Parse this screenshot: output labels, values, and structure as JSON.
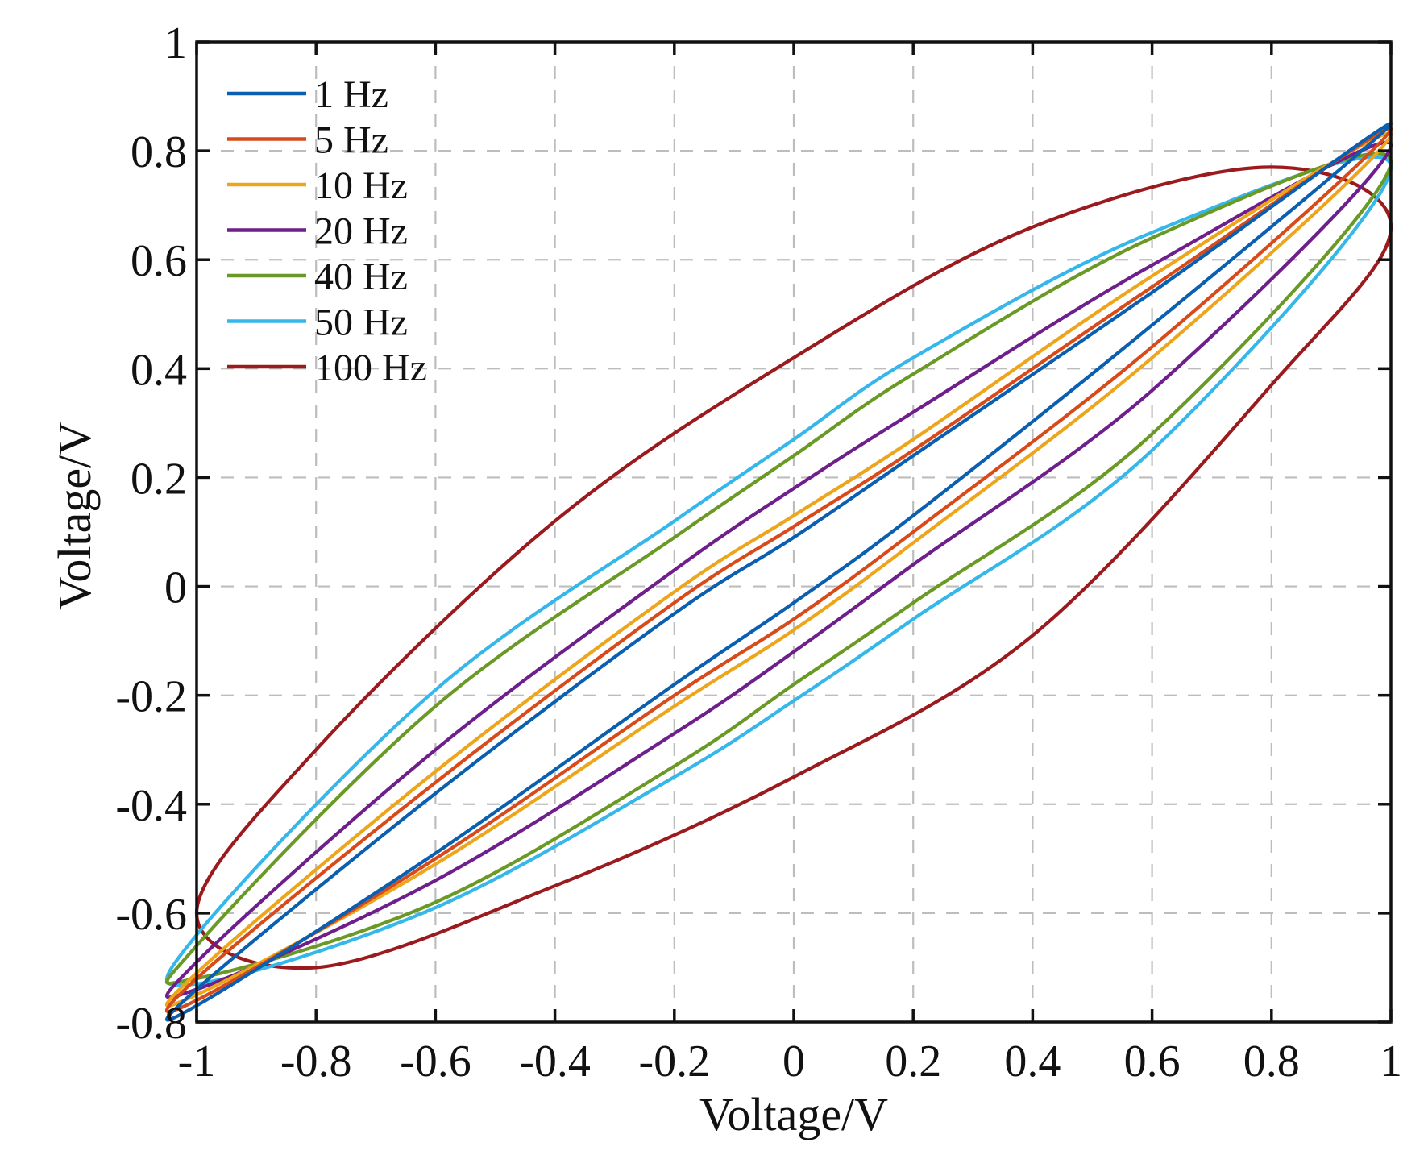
{
  "chart_data": {
    "type": "line",
    "xlabel": "Voltage/V",
    "ylabel": "Voltage/V",
    "xlim": [
      -1,
      1
    ],
    "ylim": [
      -0.8,
      1
    ],
    "grid": true,
    "legend_position": "top-left",
    "x_ticks": [
      -1,
      -0.8,
      -0.6,
      -0.4,
      -0.2,
      0,
      0.2,
      0.4,
      0.6,
      0.8,
      1
    ],
    "y_ticks": [
      -0.8,
      -0.6,
      -0.4,
      -0.2,
      0,
      0.2,
      0.4,
      0.6,
      0.8,
      1
    ],
    "x_tick_labels": [
      "-1",
      "-0.8",
      "-0.6",
      "-0.4",
      "-0.2",
      "0",
      "0.2",
      "0.4",
      "0.6",
      "0.8",
      "1"
    ],
    "y_tick_labels": [
      "-0.8",
      "-0.6",
      "-0.4",
      "-0.2",
      "0",
      "0.2",
      "0.4",
      "0.6",
      "0.8",
      "1"
    ],
    "series": [
      {
        "name": "1 Hz",
        "color": "#0b5fb0",
        "points": [
          [
            -1,
            -0.77
          ],
          [
            -0.6,
            -0.49
          ],
          [
            -0.2,
            -0.18
          ],
          [
            0,
            -0.03
          ],
          [
            0.2,
            0.13
          ],
          [
            0.6,
            0.48
          ],
          [
            1,
            0.85
          ],
          [
            0.6,
            0.54
          ],
          [
            0.2,
            0.24
          ],
          [
            0,
            0.09
          ],
          [
            -0.2,
            -0.05
          ],
          [
            -0.6,
            -0.38
          ],
          [
            -1,
            -0.74
          ]
        ]
      },
      {
        "name": "5 Hz",
        "color": "#d94a1a",
        "points": [
          [
            -1,
            -0.76
          ],
          [
            -0.6,
            -0.5
          ],
          [
            -0.2,
            -0.2
          ],
          [
            0,
            -0.06
          ],
          [
            0.2,
            0.1
          ],
          [
            0.6,
            0.44
          ],
          [
            1,
            0.84
          ],
          [
            0.6,
            0.55
          ],
          [
            0.2,
            0.25
          ],
          [
            0,
            0.11
          ],
          [
            -0.2,
            -0.03
          ],
          [
            -0.6,
            -0.36
          ],
          [
            -1,
            -0.72
          ]
        ]
      },
      {
        "name": "10 Hz",
        "color": "#eda51b",
        "points": [
          [
            -1,
            -0.75
          ],
          [
            -0.6,
            -0.51
          ],
          [
            -0.2,
            -0.22
          ],
          [
            0,
            -0.08
          ],
          [
            0.2,
            0.08
          ],
          [
            0.6,
            0.42
          ],
          [
            1,
            0.83
          ],
          [
            0.6,
            0.57
          ],
          [
            0.2,
            0.27
          ],
          [
            0,
            0.13
          ],
          [
            -0.2,
            -0.01
          ],
          [
            -0.6,
            -0.34
          ],
          [
            -1,
            -0.71
          ]
        ]
      },
      {
        "name": "20 Hz",
        "color": "#6e1f8c",
        "points": [
          [
            -1,
            -0.74
          ],
          [
            -0.6,
            -0.54
          ],
          [
            -0.2,
            -0.27
          ],
          [
            0,
            -0.12
          ],
          [
            0.2,
            0.04
          ],
          [
            0.6,
            0.36
          ],
          [
            1,
            0.81
          ],
          [
            0.6,
            0.59
          ],
          [
            0.2,
            0.32
          ],
          [
            0,
            0.18
          ],
          [
            -0.2,
            0.03
          ],
          [
            -0.6,
            -0.3
          ],
          [
            -1,
            -0.69
          ]
        ]
      },
      {
        "name": "40 Hz",
        "color": "#6a9a25",
        "points": [
          [
            -1,
            -0.72
          ],
          [
            -0.6,
            -0.58
          ],
          [
            -0.2,
            -0.33
          ],
          [
            0,
            -0.18
          ],
          [
            0.2,
            -0.03
          ],
          [
            0.6,
            0.28
          ],
          [
            1,
            0.78
          ],
          [
            0.6,
            0.64
          ],
          [
            0.2,
            0.39
          ],
          [
            0,
            0.24
          ],
          [
            -0.2,
            0.09
          ],
          [
            -0.6,
            -0.22
          ],
          [
            -1,
            -0.66
          ]
        ]
      },
      {
        "name": "50 Hz",
        "color": "#35b7ea",
        "points": [
          [
            -1,
            -0.73
          ],
          [
            -0.6,
            -0.59
          ],
          [
            -0.2,
            -0.35
          ],
          [
            0,
            -0.21
          ],
          [
            0.2,
            -0.06
          ],
          [
            0.6,
            0.25
          ],
          [
            1,
            0.77
          ],
          [
            0.6,
            0.65
          ],
          [
            0.2,
            0.42
          ],
          [
            0,
            0.27
          ],
          [
            -0.2,
            0.12
          ],
          [
            -0.6,
            -0.19
          ],
          [
            -1,
            -0.64
          ]
        ]
      },
      {
        "name": "100 Hz",
        "color": "#9b1a1e",
        "points": [
          [
            -1,
            -0.6
          ],
          [
            -0.8,
            -0.7
          ],
          [
            -0.4,
            -0.55
          ],
          [
            0,
            -0.35
          ],
          [
            0.4,
            -0.09
          ],
          [
            0.8,
            0.37
          ],
          [
            1,
            0.66
          ],
          [
            0.8,
            0.77
          ],
          [
            0.4,
            0.66
          ],
          [
            0,
            0.42
          ],
          [
            -0.4,
            0.12
          ],
          [
            -0.8,
            -0.3
          ],
          [
            -1,
            -0.6
          ]
        ]
      }
    ]
  }
}
